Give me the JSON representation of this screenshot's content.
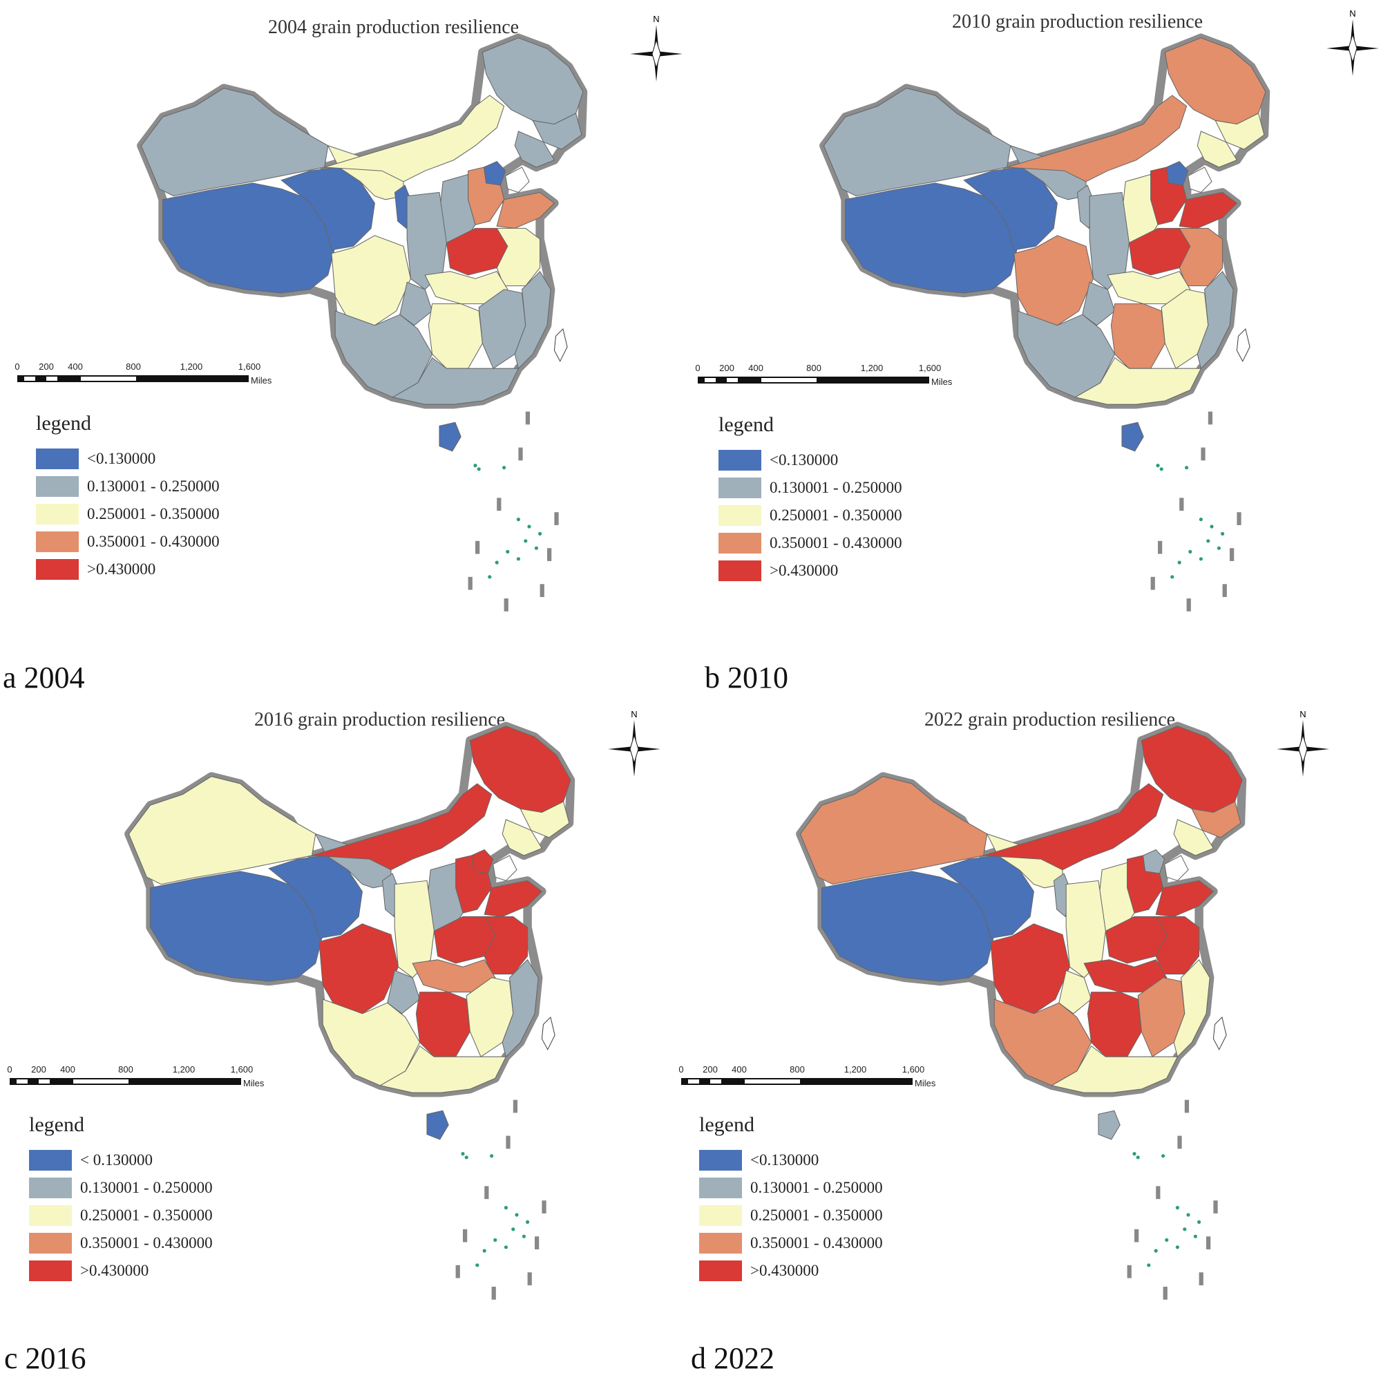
{
  "colors": {
    "class1": "#4a72b8",
    "class2": "#9fb0bb",
    "class3": "#f6f7c3",
    "class4": "#e38f6b",
    "class5": "#d93a35",
    "border": "#8c8c8c",
    "islands": "#2f9c7d"
  },
  "legend": {
    "title": "legend",
    "labels": [
      "<0.130000",
      "0.130001 - 0.250000",
      "0.250001 - 0.350000",
      "0.350001 - 0.430000",
      ">0.430000"
    ],
    "labels_c": [
      "< 0.130000",
      "0.130001 - 0.250000",
      "0.250001 - 0.350000",
      "0.350001 - 0.430000",
      ">0.430000"
    ]
  },
  "scale": {
    "ticks": [
      "0",
      "200",
      "400",
      "800",
      "1,200",
      "1,600"
    ],
    "unit": "Miles"
  },
  "compass": {
    "north": "N"
  },
  "panels": [
    {
      "id": "a",
      "title": "2004 grain production resilience",
      "caption": "a 2004",
      "regions": {
        "northeast": 2,
        "ne_mid": 2,
        "ne_south": 2,
        "north_strip": 3,
        "beijing_tianjin": 1,
        "hebei": 4,
        "shandong": 4,
        "henan": 5,
        "jiangsu_anhui": 3,
        "shanxi": 2,
        "shaanxi": 2,
        "ningxia": 1,
        "gansu": 3,
        "qinghai": 1,
        "tibet": 1,
        "xinjiang": 2,
        "sichuan": 3,
        "yunnan_guizhou": 2,
        "chongqing": 2,
        "hubei": 3,
        "hunan": 3,
        "jiangxi": 2,
        "fujian_zhejiang": 2,
        "guangdong_guangxi": 2,
        "hainan": 1
      }
    },
    {
      "id": "b",
      "title": "2010 grain production resilience",
      "caption": "b 2010",
      "regions": {
        "northeast": 4,
        "ne_mid": 3,
        "ne_south": 3,
        "north_strip": 4,
        "beijing_tianjin": 1,
        "hebei": 5,
        "shandong": 5,
        "henan": 5,
        "jiangsu_anhui": 4,
        "shanxi": 3,
        "shaanxi": 2,
        "ningxia": 2,
        "gansu": 2,
        "qinghai": 1,
        "tibet": 1,
        "xinjiang": 2,
        "sichuan": 4,
        "yunnan_guizhou": 2,
        "chongqing": 2,
        "hubei": 3,
        "hunan": 4,
        "jiangxi": 3,
        "fujian_zhejiang": 2,
        "guangdong_guangxi": 3,
        "hainan": 1
      }
    },
    {
      "id": "c",
      "title": "2016 grain production resilience",
      "caption": "c 2016",
      "regions": {
        "northeast": 5,
        "ne_mid": 3,
        "ne_south": 3,
        "north_strip": 5,
        "beijing_tianjin": 5,
        "hebei": 5,
        "shandong": 5,
        "henan": 5,
        "jiangsu_anhui": 5,
        "shanxi": 2,
        "shaanxi": 3,
        "ningxia": 2,
        "gansu": 2,
        "qinghai": 1,
        "tibet": 1,
        "xinjiang": 3,
        "sichuan": 5,
        "yunnan_guizhou": 3,
        "chongqing": 2,
        "hubei": 4,
        "hunan": 5,
        "jiangxi": 3,
        "fujian_zhejiang": 2,
        "guangdong_guangxi": 3,
        "hainan": 1
      }
    },
    {
      "id": "d",
      "title": "2022 grain production resilience",
      "caption": "d 2022",
      "regions": {
        "northeast": 5,
        "ne_mid": 4,
        "ne_south": 3,
        "north_strip": 5,
        "beijing_tianjin": 2,
        "hebei": 5,
        "shandong": 5,
        "henan": 5,
        "jiangsu_anhui": 5,
        "shanxi": 3,
        "shaanxi": 3,
        "ningxia": 2,
        "gansu": 3,
        "qinghai": 1,
        "tibet": 1,
        "xinjiang": 4,
        "sichuan": 5,
        "yunnan_guizhou": 4,
        "chongqing": 3,
        "hubei": 5,
        "hunan": 5,
        "jiangxi": 4,
        "fujian_zhejiang": 3,
        "guangdong_guangxi": 3,
        "hainan": 2
      }
    }
  ]
}
